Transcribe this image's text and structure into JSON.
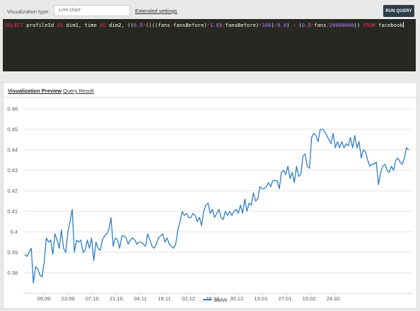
{
  "toolbar": {
    "vt_label": "Visualization type:",
    "vt_value": "Line chart",
    "extended_label": "Extended settings",
    "run_label": "RUN QUERY"
  },
  "editor": {
    "tokens": [
      [
        "kw",
        "SELECT"
      ],
      [
        "id",
        " profileId "
      ],
      [
        "kw",
        "AS"
      ],
      [
        "id",
        " dim1, time "
      ],
      [
        "kw",
        "AS"
      ],
      [
        "id",
        " dim2, (("
      ],
      [
        "num",
        "0.5"
      ],
      [
        "op",
        "*"
      ],
      [
        "id",
        "((((fans"
      ],
      [
        "op",
        "-"
      ],
      [
        "id",
        "fansBefore)"
      ],
      [
        "op",
        "*"
      ],
      [
        "num",
        "1.0"
      ],
      [
        "id",
        ")"
      ],
      [
        "op",
        "/"
      ],
      [
        "id",
        "fansBefore)"
      ],
      [
        "op",
        "*"
      ],
      [
        "num",
        "100"
      ],
      [
        "id",
        ")"
      ],
      [
        "op",
        "/"
      ],
      [
        "num",
        "0.6"
      ],
      [
        "id",
        ") "
      ],
      [
        "op",
        "+"
      ],
      [
        "id",
        " ("
      ],
      [
        "num",
        "0.5"
      ],
      [
        "op",
        "*"
      ],
      [
        "id",
        "fans"
      ],
      [
        "op",
        "/"
      ],
      [
        "num",
        "20000000"
      ],
      [
        "id",
        ")) "
      ],
      [
        "kw",
        "FROM"
      ],
      [
        "id",
        " facebook"
      ]
    ]
  },
  "tabs": [
    {
      "label": "Visualization Preview",
      "active": true
    },
    {
      "label": "Query Result",
      "active": false
    }
  ],
  "colors": {
    "series": "#2f7ec2",
    "grid": "#e3e3e3",
    "axis": "#555555"
  },
  "chart_data": {
    "type": "line",
    "title": "",
    "xlabel": "",
    "ylabel": "",
    "ylim": [
      0.37,
      0.46
    ],
    "yticks": [
      "0.46",
      "0.45",
      "0.44",
      "0.43",
      "0.42",
      "0.41",
      "0.4",
      "0.39",
      "0.38"
    ],
    "xticks": [
      "09.09.",
      "23.09.",
      "07.10.",
      "21.10.",
      "04.11.",
      "18.11.",
      "02.12.",
      "16.12.",
      "30.12.",
      "13.01.",
      "27.01.",
      "10.02.",
      "24.02."
    ],
    "grid": true,
    "legend_position": "bottom-center",
    "series": [
      {
        "name": "BMW",
        "values": [
          0.389,
          0.388,
          0.39,
          0.392,
          0.375,
          0.383,
          0.382,
          0.379,
          0.378,
          0.385,
          0.397,
          0.395,
          0.396,
          0.389,
          0.399,
          0.396,
          0.392,
          0.401,
          0.392,
          0.39,
          0.4,
          0.405,
          0.411,
          0.39,
          0.396,
          0.395,
          0.396,
          0.39,
          0.391,
          0.396,
          0.392,
          0.397,
          0.386,
          0.395,
          0.392,
          0.391,
          0.396,
          0.398,
          0.399,
          0.401,
          0.407,
          0.393,
          0.397,
          0.396,
          0.392,
          0.398,
          0.398,
          0.397,
          0.394,
          0.396,
          0.397,
          0.396,
          0.394,
          0.395,
          0.395,
          0.394,
          0.393,
          0.399,
          0.396,
          0.393,
          0.392,
          0.394,
          0.397,
          0.398,
          0.399,
          0.395,
          0.397,
          0.394,
          0.393,
          0.392,
          0.394,
          0.401,
          0.405,
          0.41,
          0.408,
          0.409,
          0.407,
          0.407,
          0.409,
          0.408,
          0.405,
          0.407,
          0.403,
          0.41,
          0.413,
          0.414,
          0.409,
          0.411,
          0.407,
          0.409,
          0.411,
          0.407,
          0.406,
          0.41,
          0.408,
          0.41,
          0.408,
          0.41,
          0.411,
          0.409,
          0.413,
          0.409,
          0.416,
          0.41,
          0.414,
          0.413,
          0.419,
          0.415,
          0.416,
          0.422,
          0.421,
          0.421,
          0.422,
          0.424,
          0.422,
          0.425,
          0.425,
          0.425,
          0.421,
          0.429,
          0.43,
          0.428,
          0.432,
          0.426,
          0.429,
          0.424,
          0.432,
          0.427,
          0.428,
          0.437,
          0.438,
          0.432,
          0.431,
          0.446,
          0.448,
          0.447,
          0.444,
          0.45,
          0.45,
          0.449,
          0.447,
          0.445,
          0.443,
          0.448,
          0.441,
          0.444,
          0.441,
          0.444,
          0.441,
          0.443,
          0.442,
          0.446,
          0.441,
          0.447,
          0.441,
          0.444,
          0.436,
          0.44,
          0.439,
          0.435,
          0.432,
          0.433,
          0.433,
          0.434,
          0.423,
          0.429,
          0.432,
          0.433,
          0.43,
          0.429,
          0.432,
          0.43,
          0.435,
          0.436,
          0.434,
          0.433,
          0.436,
          0.441,
          0.44
        ]
      }
    ]
  }
}
